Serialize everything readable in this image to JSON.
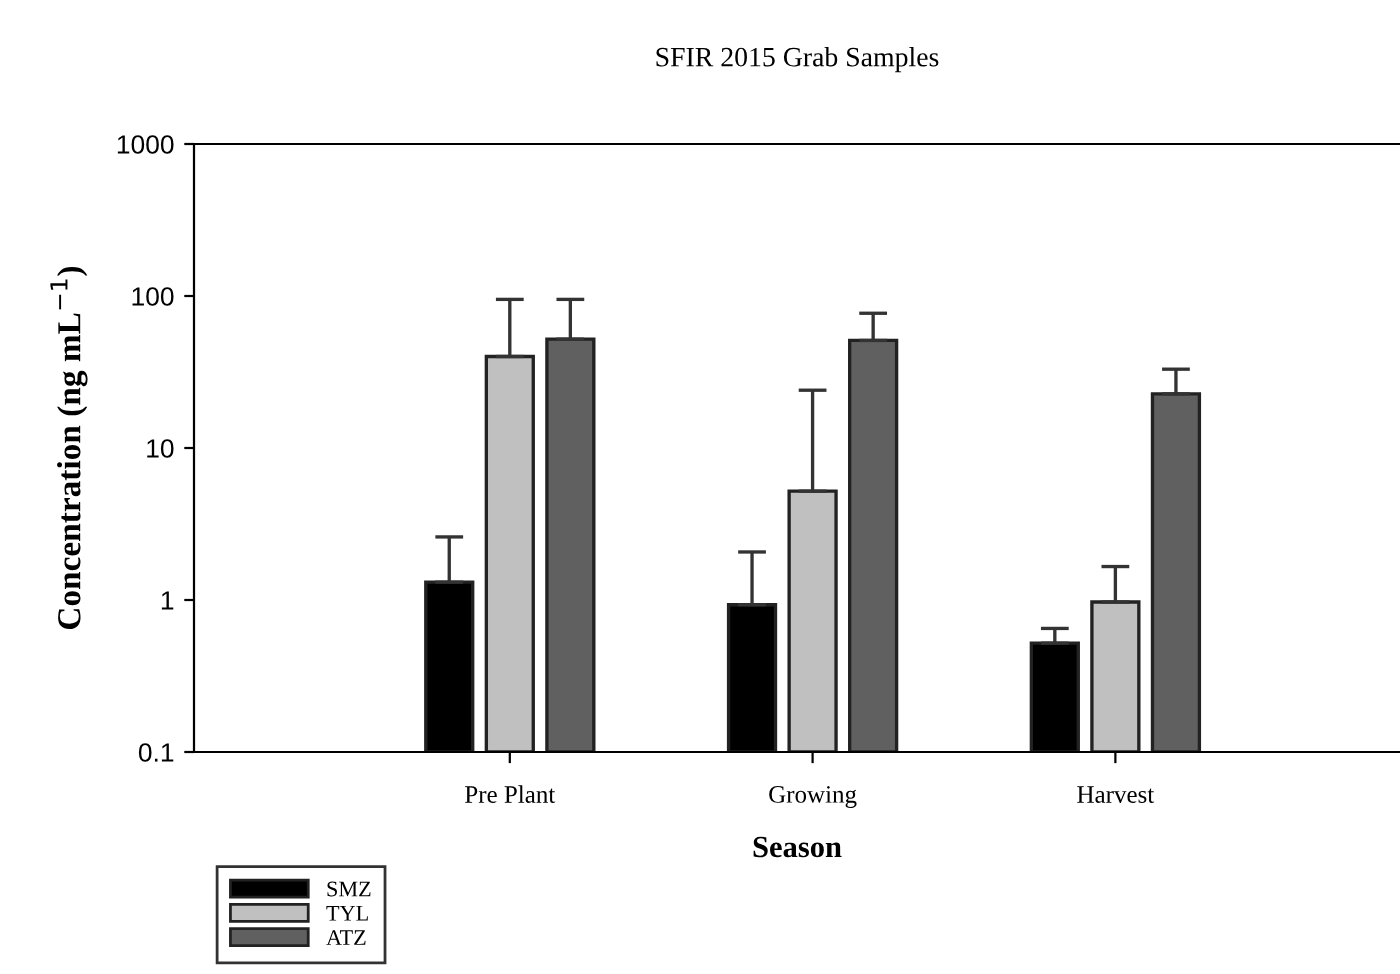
{
  "chart_data": {
    "type": "bar",
    "title": "SFIR 2015 Grab Samples",
    "xlabel": "Season",
    "ylabel": "Concentration (ng mL$^{−1}$)",
    "categories": [
      "Pre Plant",
      "Growing",
      "Harvest"
    ],
    "series": [
      {
        "name": "SMZ",
        "color": "#000000",
        "values": [
          1.31,
          0.93,
          0.52
        ],
        "errors": [
          [
            1.31,
            2.6
          ],
          [
            0.93,
            2.07
          ],
          [
            0.52,
            0.65
          ]
        ]
      },
      {
        "name": "TYL",
        "color": "#c0c0c0",
        "values": [
          40,
          5.2,
          0.97
        ],
        "errors": [
          [
            40,
            95
          ],
          [
            5.2,
            24
          ],
          [
            0.97,
            1.66
          ]
        ]
      },
      {
        "name": "ATZ",
        "color": "#606060",
        "values": [
          52,
          51,
          22.7
        ],
        "errors": [
          [
            52,
            95
          ],
          [
            51,
            77
          ],
          [
            22.7,
            33
          ]
        ]
      }
    ],
    "log": true,
    "ylim": [
      0.1,
      1000
    ],
    "yticks": [
      0.1,
      1,
      10,
      100,
      1000
    ],
    "grid": false,
    "legend": "bottom left"
  }
}
